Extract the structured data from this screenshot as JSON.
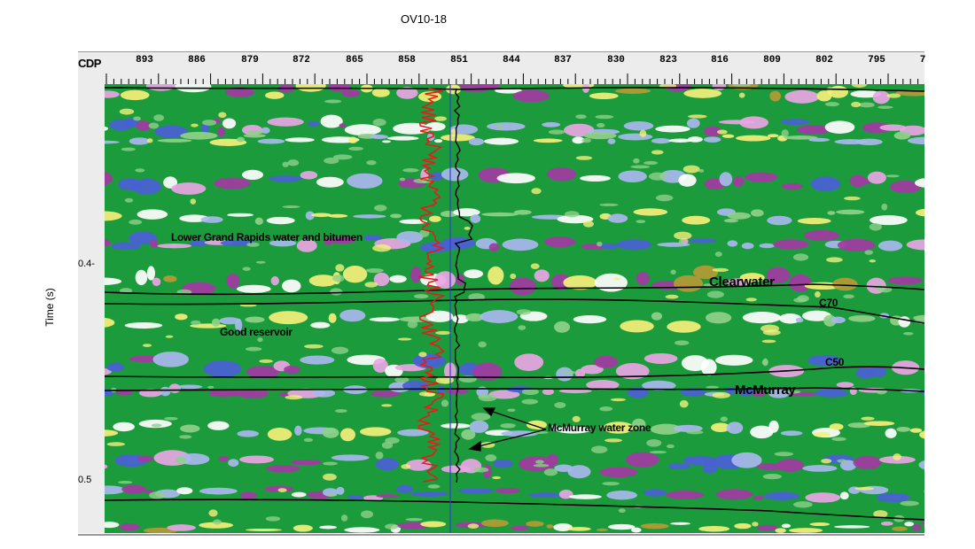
{
  "well": {
    "name": "OV10-18"
  },
  "axes": {
    "cdp_label": "CDP",
    "cdp_ticks": [
      "893",
      "886",
      "879",
      "872",
      "865",
      "858",
      "851",
      "844",
      "837",
      "830",
      "823",
      "816",
      "809",
      "802",
      "795",
      "7"
    ],
    "time_title": "Time (s)",
    "time_ticks": [
      "0.4-",
      "0.5"
    ]
  },
  "annotations": {
    "lower_grand_rapids": "Lower Grand Rapids water and bitumen",
    "clearwater": "Clearwater",
    "c70": "C70",
    "good_reservoir": "Good reservoir",
    "c50": "C50",
    "mcmurray": "McMurray",
    "mcmurray_water": "McMurray water zone"
  },
  "colors": {
    "green": "#1c9b3c",
    "light_green": "#8fd08a",
    "blue": "#4a5fd6",
    "light_blue": "#a9b8ee",
    "magenta": "#a23aa4",
    "pink": "#e9a6e4",
    "gold": "#b49a34",
    "yellow": "#f4f07a",
    "white": "#ffffff",
    "log_red": "#e81a1a",
    "well_blue": "#3a3ad0",
    "horizon": "#000000"
  }
}
